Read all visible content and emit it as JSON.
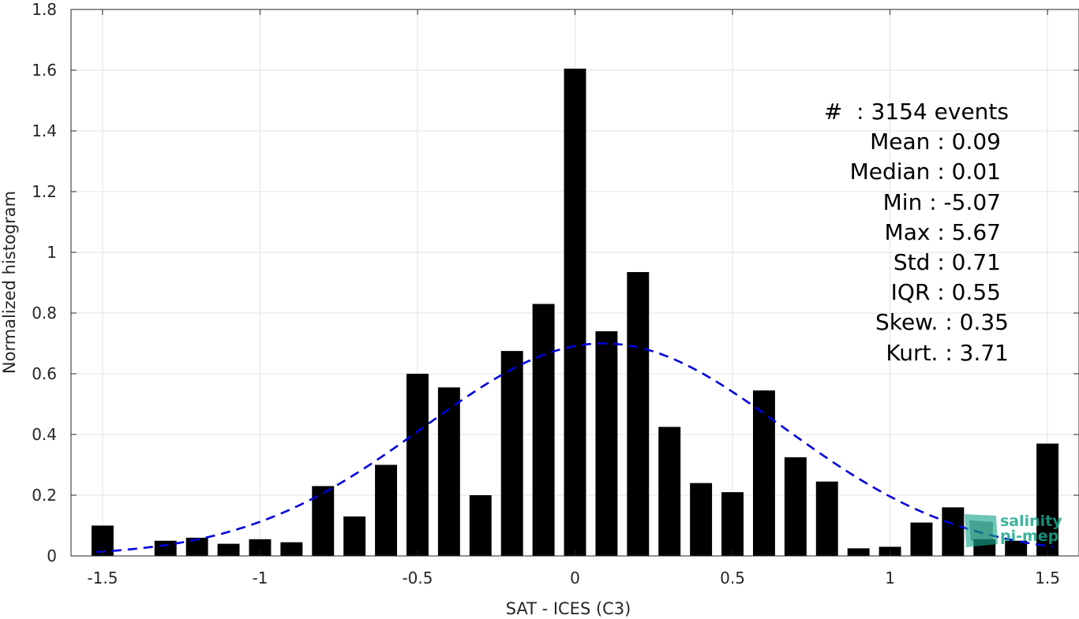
{
  "chart_data": {
    "type": "bar",
    "xlabel": "SAT - ICES (C3)",
    "ylabel": "Normalized histogram",
    "xlim": [
      -1.6,
      1.6
    ],
    "ylim": [
      0,
      1.8
    ],
    "grid": true,
    "x_ticks": [
      "-1.5",
      "-1",
      "-0.5",
      "0",
      "0.5",
      "1",
      "1.5"
    ],
    "x_tick_values": [
      -1.5,
      -1,
      -0.5,
      0,
      0.5,
      1,
      1.5
    ],
    "y_ticks": [
      "0",
      "0.2",
      "0.4",
      "0.6",
      "0.8",
      "1",
      "1.2",
      "1.4",
      "1.6",
      "1.8"
    ],
    "y_tick_values": [
      0,
      0.2,
      0.4,
      0.6,
      0.8,
      1,
      1.2,
      1.4,
      1.6,
      1.8
    ],
    "bar_width": 0.07,
    "bar_color": "#000000",
    "bars": {
      "x": [
        -1.5,
        -1.3,
        -1.2,
        -1.1,
        -1.0,
        -0.9,
        -0.8,
        -0.7,
        -0.6,
        -0.5,
        -0.4,
        -0.3,
        -0.2,
        -0.1,
        0.0,
        0.1,
        0.2,
        0.3,
        0.4,
        0.5,
        0.6,
        0.7,
        0.8,
        0.9,
        1.0,
        1.1,
        1.2,
        1.3,
        1.4,
        1.5
      ],
      "values": [
        0.1,
        0.05,
        0.06,
        0.04,
        0.055,
        0.045,
        0.23,
        0.13,
        0.3,
        0.6,
        0.555,
        0.2,
        0.675,
        0.83,
        1.605,
        0.74,
        0.935,
        0.425,
        0.24,
        0.21,
        0.545,
        0.325,
        0.245,
        0.025,
        0.03,
        0.11,
        0.16,
        0.055,
        0.05,
        0.37
      ]
    },
    "fit": {
      "type": "gaussian",
      "mean": 0.09,
      "std": 0.57,
      "peak": 0.7,
      "x_range": [
        -1.52,
        1.52
      ],
      "color": "#0000dd",
      "style": "dashed"
    }
  },
  "stats": [
    {
      "label": "#  : 3154 events"
    },
    {
      "label": "Mean : 0.09"
    },
    {
      "label": "Median : 0.01"
    },
    {
      "label": "Min : -5.07"
    },
    {
      "label": "Max : 5.67"
    },
    {
      "label": "Std : 0.71"
    },
    {
      "label": "IQR : 0.55"
    },
    {
      "label": "Skew. : 0.35"
    },
    {
      "label": "Kurt. : 3.71"
    }
  ],
  "logo": {
    "line1": "salinity",
    "line2": "pi-mep",
    "color": "#1aa88c"
  }
}
